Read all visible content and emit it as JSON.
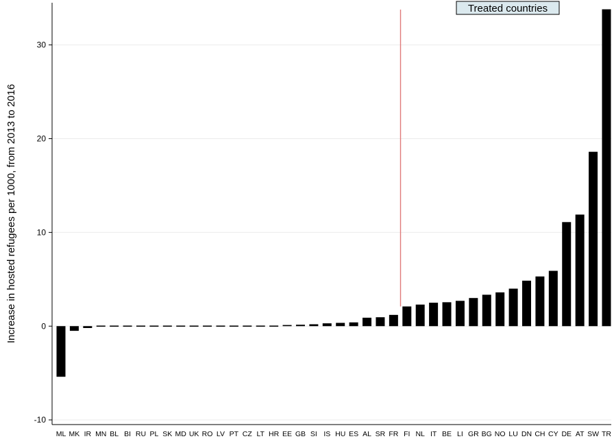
{
  "chart_data": {
    "type": "bar",
    "ylabel": "Increase in hosted refugees per 1000, from 2013 to 2016",
    "xlabel": "",
    "ylim": [
      -10.5,
      34.5
    ],
    "yticks": [
      -10,
      0,
      10,
      20,
      30
    ],
    "grid": true,
    "categories": [
      "ML",
      "MK",
      "IR",
      "MN",
      "BL",
      "BI",
      "RU",
      "PL",
      "SK",
      "MD",
      "UK",
      "RO",
      "LV",
      "PT",
      "CZ",
      "LT",
      "HR",
      "EE",
      "GB",
      "SI",
      "IS",
      "HU",
      "ES",
      "AL",
      "SR",
      "FR",
      "FI",
      "NL",
      "IT",
      "BE",
      "LI",
      "GR",
      "BG",
      "NO",
      "LU",
      "DN",
      "CH",
      "CY",
      "DE",
      "AT",
      "SW",
      "TR"
    ],
    "values": [
      -5.4,
      -0.5,
      -0.2,
      -0.1,
      -0.03,
      -0.02,
      -0.01,
      0.0,
      0.0,
      0.01,
      0.02,
      0.03,
      0.04,
      0.05,
      0.06,
      0.08,
      0.1,
      0.12,
      0.15,
      0.2,
      0.3,
      0.35,
      0.4,
      0.9,
      0.95,
      1.2,
      2.1,
      2.3,
      2.5,
      2.55,
      2.7,
      3.0,
      3.35,
      3.6,
      4.0,
      4.85,
      5.3,
      5.9,
      11.1,
      11.9,
      18.6,
      33.8
    ],
    "treated_start_category": "FI",
    "annotation": {
      "text": "Treated countries"
    },
    "colors": {
      "bar": "#000000",
      "divider": "#e07a7a",
      "grid": "#ebebeb",
      "annotation_fill": "#dbe9ee"
    }
  }
}
